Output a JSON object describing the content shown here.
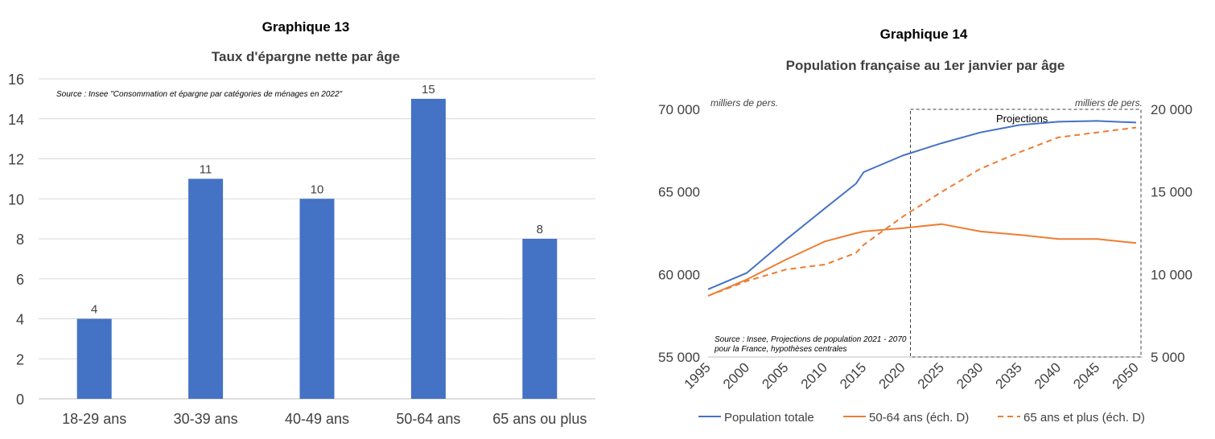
{
  "chart_data": [
    {
      "type": "bar",
      "figure_label": "Graphique 13",
      "title": "Taux d'épargne nette par âge",
      "source": "Source : Insee \"Consommation et épargne par catégories de ménages en 2022\"",
      "categories": [
        "18-29 ans",
        "30-39 ans",
        "40-49 ans",
        "50-64 ans",
        "65 ans ou plus"
      ],
      "values": [
        4,
        11,
        10,
        15,
        8
      ],
      "ylim": [
        0,
        16
      ],
      "yticks": [
        "0",
        "2",
        "4",
        "6",
        "8",
        "10",
        "12",
        "14",
        "16"
      ],
      "grid": true,
      "color": "#4472C4"
    },
    {
      "type": "line",
      "figure_label": "Graphique 14",
      "title": "Population française au 1er janvier par âge",
      "source_line1": "Source : Insee, Projections de population 2021 - 2070",
      "source_line2": "pour la France, hypothèses centrales",
      "unit_left": "milliers de pers.",
      "unit_right": "milliers de pers.",
      "projection_label": "Projections",
      "projection_start": 2021,
      "x": [
        1995,
        2000,
        2005,
        2010,
        2014,
        2015,
        2020,
        2025,
        2030,
        2035,
        2040,
        2045,
        2050
      ],
      "xticks": [
        "1995",
        "2000",
        "2005",
        "2010",
        "2015",
        "2020",
        "2025",
        "2030",
        "2035",
        "2040",
        "2045",
        "2050"
      ],
      "ylim_left": [
        55000,
        70000
      ],
      "yticks_left": [
        "55 000",
        "60 000",
        "65 000",
        "70 000"
      ],
      "ylim_right": [
        5000,
        20000
      ],
      "yticks_right": [
        "5 000",
        "10 000",
        "15 000",
        "20 000"
      ],
      "series": [
        {
          "name": "Population totale",
          "axis": "left",
          "style": "solid",
          "color": "#4472C4",
          "values": [
            59100,
            60100,
            62100,
            64000,
            65500,
            66200,
            67200,
            67950,
            68600,
            69050,
            69250,
            69300,
            69200
          ]
        },
        {
          "name": "50-64 ans (éch. D)",
          "axis": "right",
          "style": "solid",
          "color": "#ED7D31",
          "values": [
            8700,
            9700,
            10900,
            12000,
            12500,
            12600,
            12800,
            13050,
            12600,
            12400,
            12150,
            12150,
            11900
          ]
        },
        {
          "name": "65 ans et plus (éch. D)",
          "axis": "right",
          "style": "dashed",
          "color": "#ED7D31",
          "values": [
            8700,
            9600,
            10300,
            10600,
            11300,
            11800,
            13500,
            15000,
            16400,
            17400,
            18300,
            18600,
            18900
          ]
        }
      ]
    }
  ]
}
